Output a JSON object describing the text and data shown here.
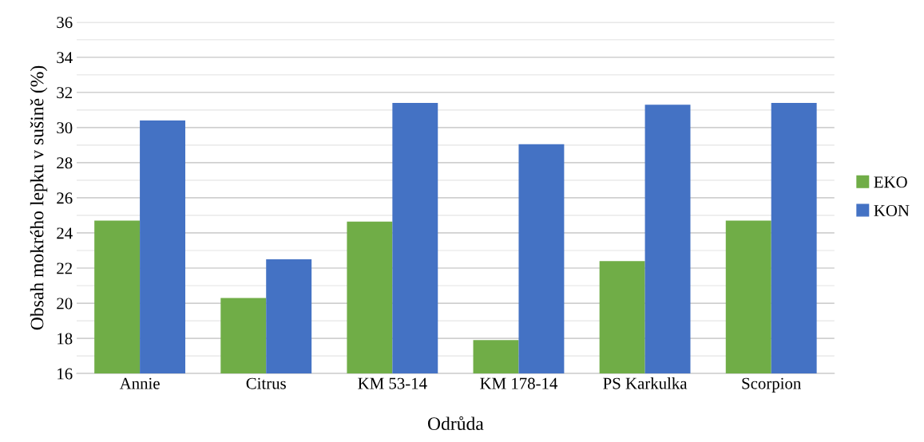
{
  "chart_data": {
    "type": "bar",
    "xlabel": "Odrůda",
    "ylabel": "Obsah mokrého lepku v sušině (%)",
    "categories": [
      "Annie",
      "Citrus",
      "KM 53-14",
      "KM 178-14",
      "PS Karkulka",
      "Scorpion"
    ],
    "series": [
      {
        "name": "EKO",
        "color": "#70ad47",
        "values": [
          24.7,
          20.3,
          24.65,
          17.9,
          22.4,
          24.7
        ]
      },
      {
        "name": "KON",
        "color": "#4472c4",
        "values": [
          30.4,
          22.5,
          31.4,
          29.05,
          31.3,
          31.4
        ]
      }
    ],
    "ylim": [
      16,
      36
    ],
    "yticks": [
      16,
      18,
      20,
      22,
      24,
      26,
      28,
      30,
      32,
      34,
      36
    ],
    "grid": "y",
    "legend": "right"
  }
}
